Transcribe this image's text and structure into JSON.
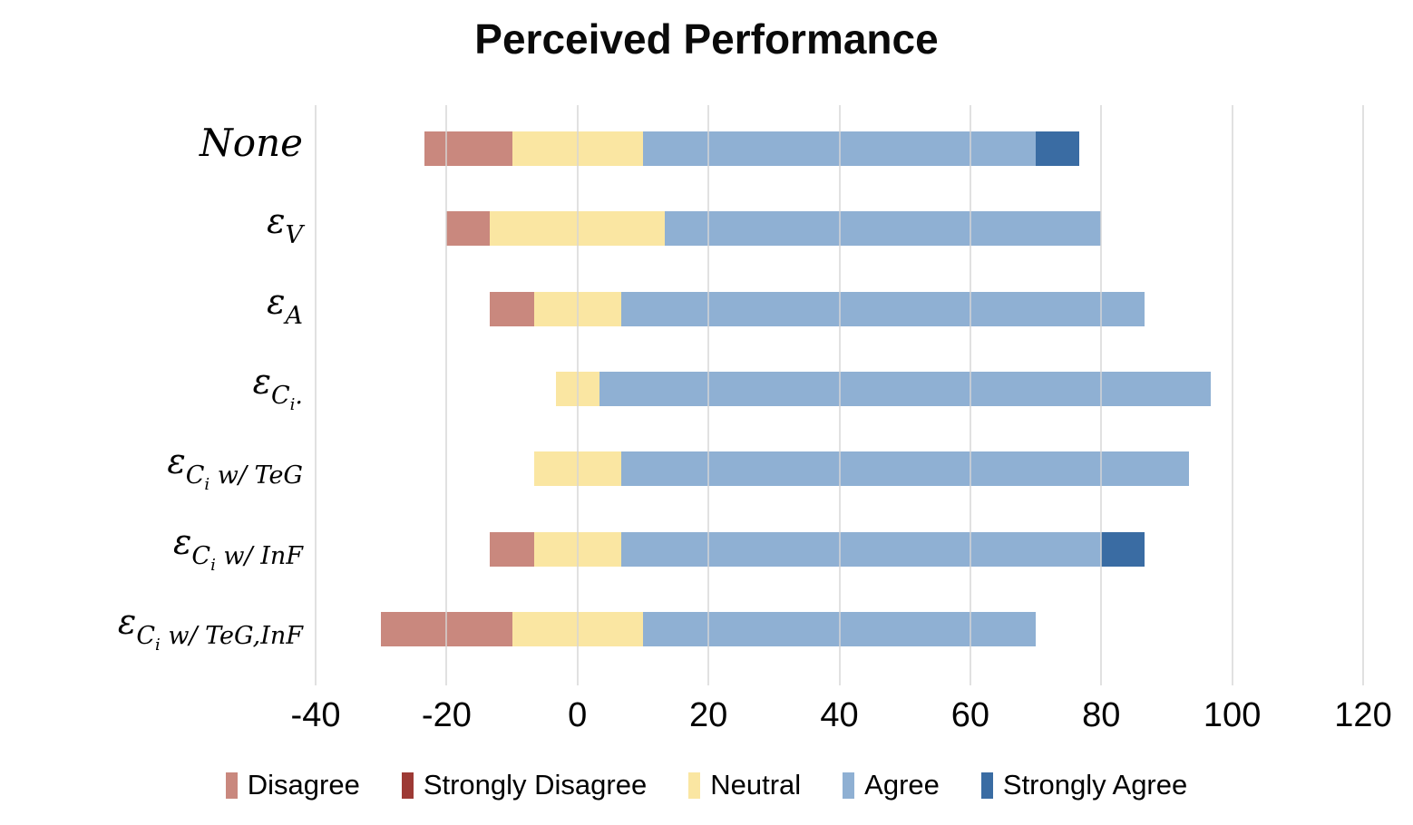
{
  "chart_data": {
    "type": "bar",
    "orientation": "horizontal",
    "stacking": "diverging-stacked-100pct-neutral-centered",
    "title": "Perceived Performance",
    "xlabel": "",
    "ylabel": "",
    "xlim": [
      -40,
      120
    ],
    "x_ticks": [
      -40,
      -20,
      0,
      20,
      40,
      60,
      80,
      100,
      120
    ],
    "grid": "vertical",
    "legend_position": "bottom",
    "gridline_color": "#D9D9D9",
    "text_color": "#000000",
    "categories": [
      "None",
      "ε_V",
      "ε_A",
      "ε_C_i",
      "ε_C_i w/ TeG",
      "ε_C_i w/ InF",
      "ε_C_i w/ TeG,InF"
    ],
    "category_labels_rich": [
      {
        "text": "None",
        "base": "",
        "sub": "",
        "subsub": "",
        "rest": ""
      },
      {
        "text": "",
        "base": "ε",
        "sub": "V",
        "subsub": "",
        "rest": ""
      },
      {
        "text": "",
        "base": "ε",
        "sub": "A",
        "subsub": "",
        "rest": ""
      },
      {
        "text": "",
        "base": "ε",
        "sub": "C",
        "subsub": "i",
        "rest": "."
      },
      {
        "text": "",
        "base": "ε",
        "sub": "C",
        "subsub": "i",
        "rest": " w/ TeG"
      },
      {
        "text": "",
        "base": "ε",
        "sub": "C",
        "subsub": "i",
        "rest": " w/ InF"
      },
      {
        "text": "",
        "base": "ε",
        "sub": "C",
        "subsub": "i",
        "rest": " w/ TeG,InF"
      }
    ],
    "series": [
      {
        "name": "Disagree",
        "color": "#C9887E",
        "values": [
          13.33,
          6.67,
          6.67,
          0,
          0,
          6.67,
          20
        ]
      },
      {
        "name": "Strongly Disagree",
        "color": "#9D3A35",
        "values": [
          0,
          0,
          0,
          0,
          0,
          0,
          0
        ]
      },
      {
        "name": "Neutral",
        "color": "#FAE6A2",
        "values": [
          20,
          26.67,
          13.33,
          6.67,
          13.33,
          13.33,
          20
        ]
      },
      {
        "name": "Agree",
        "color": "#8FB0D3",
        "values": [
          60,
          66.67,
          80,
          93.33,
          86.67,
          73.33,
          60
        ]
      },
      {
        "name": "Strongly Agree",
        "color": "#3A6CA3",
        "values": [
          6.67,
          0,
          0,
          0,
          0,
          6.67,
          0
        ]
      }
    ],
    "bar_left_edges": [
      -23.33,
      -20,
      -13.33,
      -3.33,
      -6.67,
      -13.33,
      -30
    ],
    "bar_right_edges": [
      76.67,
      80,
      86.67,
      96.67,
      93.33,
      86.67,
      70
    ]
  }
}
